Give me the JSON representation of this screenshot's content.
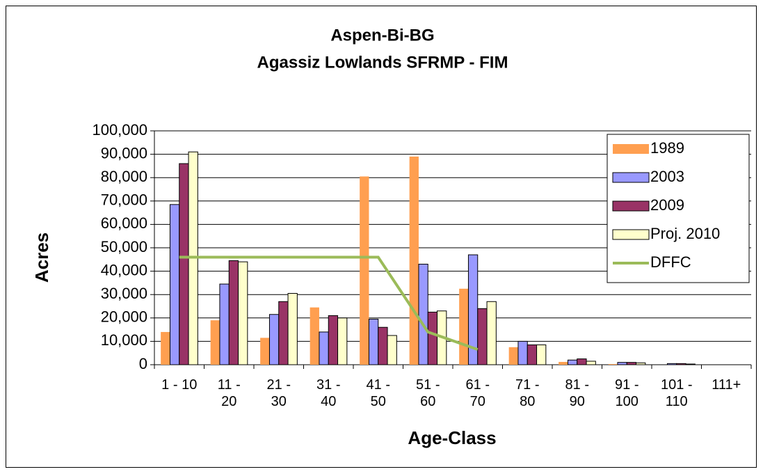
{
  "chart_data": {
    "type": "bar",
    "title": "Aspen-Bi-BG",
    "subtitle": "Agassiz Lowlands SFRMP - FIM",
    "x_label": "Age-Class",
    "y_label": "Acres",
    "categories": [
      "1 - 10",
      "11 - 20",
      "21 - 30",
      "31 - 40",
      "41 - 50",
      "51 - 60",
      "61 - 70",
      "71 - 80",
      "81 - 90",
      "91 - 100",
      "101 - 110",
      "111+"
    ],
    "series": [
      {
        "name": "1989",
        "color": "#ff9f50",
        "values": [
          14000,
          19000,
          11500,
          24500,
          80500,
          89000,
          32500,
          7500,
          1200,
          300,
          0,
          0
        ]
      },
      {
        "name": "2003",
        "color": "#9999ff",
        "values": [
          68500,
          34500,
          21500,
          14000,
          19500,
          43000,
          47000,
          10000,
          2000,
          1000,
          500,
          0
        ]
      },
      {
        "name": "2009",
        "color": "#993366",
        "values": [
          86000,
          44500,
          27000,
          21000,
          16000,
          22500,
          24000,
          8500,
          2500,
          1000,
          500,
          0
        ]
      },
      {
        "name": "Proj. 2010",
        "color": "#ffffcc",
        "values": [
          91000,
          44000,
          30500,
          20000,
          12500,
          23000,
          27000,
          8500,
          1500,
          800,
          300,
          0
        ]
      },
      {
        "name": "DFFC",
        "color": "#9bbb59",
        "type": "line",
        "values": [
          46000,
          46000,
          46000,
          46000,
          46000,
          14000,
          6500,
          null,
          null,
          null,
          null,
          null
        ]
      }
    ],
    "ylim": [
      0,
      100000
    ],
    "yticks": [
      0,
      {
        "value": 10000,
        "label": "10,000"
      },
      {
        "value": 20000,
        "label": "20,000"
      },
      {
        "value": 30000,
        "label": "30,000"
      },
      {
        "value": 40000,
        "label": "40,000"
      },
      {
        "value": 50000,
        "label": "50,000"
      },
      {
        "value": 60000,
        "label": "60,000"
      },
      {
        "value": 70000,
        "label": "70,000"
      },
      {
        "value": 80000,
        "label": "80,000"
      },
      {
        "value": 90000,
        "label": "90,000"
      },
      {
        "value": 100000,
        "label": "100,000"
      }
    ],
    "grid": true,
    "legend": "upper right"
  }
}
